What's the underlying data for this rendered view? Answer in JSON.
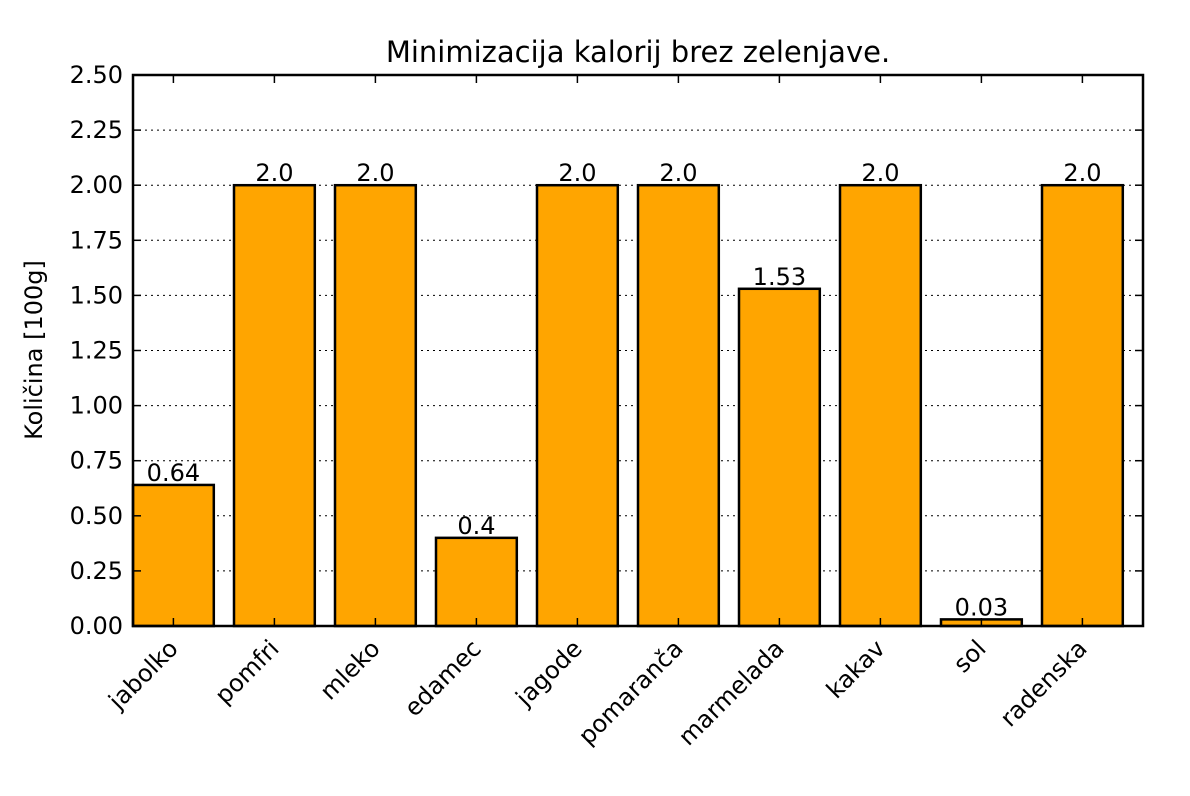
{
  "chart_data": {
    "type": "bar",
    "title": "Minimizacija kalorij brez zelenjave.",
    "xlabel": "",
    "ylabel": "Količina [100g]",
    "categories": [
      "jabolko",
      "pomfri",
      "mleko",
      "edamec",
      "jagode",
      "pomaranča",
      "marmelada",
      "kakav",
      "sol",
      "radenska"
    ],
    "values": [
      0.64,
      2.0,
      2.0,
      0.4,
      2.0,
      2.0,
      1.53,
      2.0,
      0.03,
      2.0
    ],
    "value_labels": [
      "0.64",
      "2.0",
      "2.0",
      "0.4",
      "2.0",
      "2.0",
      "1.53",
      "2.0",
      "0.03",
      "2.0"
    ],
    "ylim": [
      0,
      2.5
    ],
    "yticks": [
      0.0,
      0.25,
      0.5,
      0.75,
      1.0,
      1.25,
      1.5,
      1.75,
      2.0,
      2.25,
      2.5
    ],
    "ytick_labels": [
      "0.00",
      "0.25",
      "0.50",
      "0.75",
      "1.00",
      "1.25",
      "1.50",
      "1.75",
      "2.00",
      "2.25",
      "2.50"
    ],
    "grid": "horizontal dashed",
    "bar_color": "#FFA500",
    "edge_color": "#000000"
  }
}
